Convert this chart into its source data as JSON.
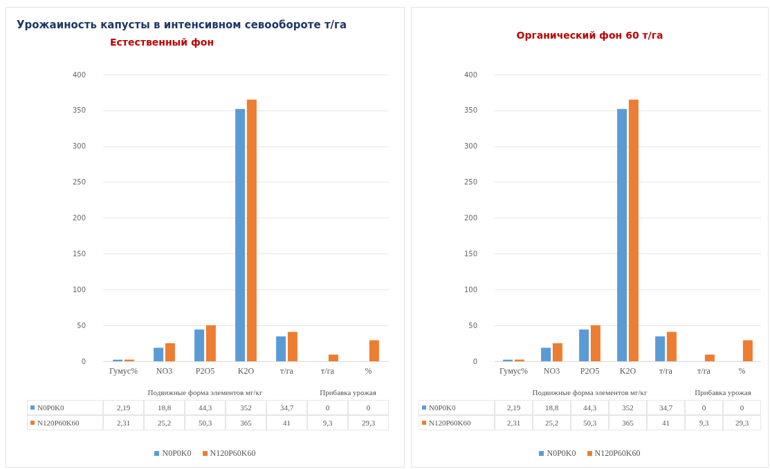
{
  "chart_data": [
    {
      "type": "bar",
      "title": "Урожаиность капусты в интенсивном севообороте т/га",
      "subtitle": "Естественный фон",
      "categories": [
        "Гумус%",
        "NO3",
        "P2O5",
        "K2O",
        "т/га",
        "т/га",
        "%"
      ],
      "annotations": [
        "Подвижные форма элементов мг/кг",
        "Прибавка урожая"
      ],
      "series": [
        {
          "name": "N0P0K0",
          "color": "#5b9bd5",
          "values": [
            2.19,
            18.8,
            44.3,
            352,
            34.7,
            0,
            0
          ],
          "value_labels": [
            "2,19",
            "18,8",
            "44,3",
            "352",
            "34,7",
            "0",
            "0"
          ]
        },
        {
          "name": "N120P60K60",
          "color": "#ed7d31",
          "values": [
            2.31,
            25.2,
            50.3,
            365,
            41,
            9.3,
            29.3
          ],
          "value_labels": [
            "2,31",
            "25,2",
            "50,3",
            "365",
            "41",
            "9,3",
            "29,3"
          ]
        }
      ],
      "ylim": [
        0,
        400
      ],
      "yticks": [
        0,
        50,
        100,
        150,
        200,
        250,
        300,
        350,
        400
      ],
      "grid": "y",
      "legend": "bottom"
    },
    {
      "type": "bar",
      "subtitle": "Органический фон 60 т/га",
      "categories": [
        "Гумус%",
        "NO3",
        "P2O5",
        "K2O",
        "т/га",
        "т/га",
        "%"
      ],
      "annotations": [
        "Подвижные форма элементов мг/кг",
        "Прибавка урожая"
      ],
      "series": [
        {
          "name": "N0P0K0",
          "color": "#5b9bd5",
          "values": [
            2.19,
            18.8,
            44.3,
            352,
            34.7,
            0,
            0
          ],
          "value_labels": [
            "2,19",
            "18,8",
            "44,3",
            "352",
            "34,7",
            "0",
            "0"
          ]
        },
        {
          "name": "N120P60K60",
          "color": "#ed7d31",
          "values": [
            2.31,
            25.2,
            50.3,
            365,
            41,
            9.3,
            29.3
          ],
          "value_labels": [
            "2,31",
            "25,2",
            "50,3",
            "365",
            "41",
            "9,3",
            "29,3"
          ]
        }
      ],
      "ylim": [
        0,
        400
      ],
      "yticks": [
        0,
        50,
        100,
        150,
        200,
        250,
        300,
        350,
        400
      ],
      "grid": "y",
      "legend": "bottom"
    }
  ]
}
